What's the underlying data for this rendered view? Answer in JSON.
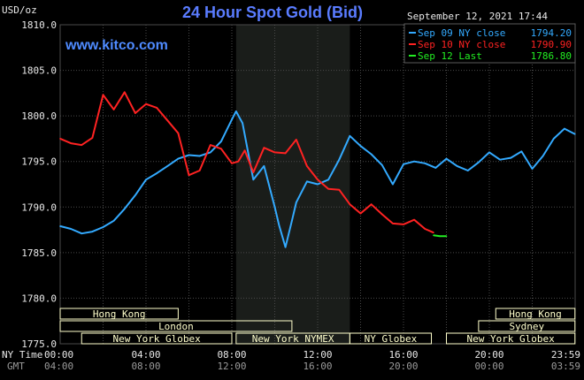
{
  "header": {
    "unit": "USD/oz",
    "title": "24 Hour Spot Gold (Bid)",
    "date": "September 12, 2021 17:44",
    "watermark": "www.kitco.com"
  },
  "colors": {
    "background": "#000000",
    "plot_background": "#000000",
    "grid": "#4a4a4a",
    "title": "#5a7cff",
    "watermark": "#4f8bff",
    "sep09": "#33aaff",
    "sep10": "#ff2222",
    "sep12": "#22ee22",
    "axis_text": "#e8e8e8",
    "market_box": "#ffffcc",
    "market_text": "#000000",
    "closed_band": "#1a1d1a"
  },
  "chart_data": {
    "type": "line",
    "title": "24 Hour Spot Gold (Bid)",
    "ylabel": "USD/oz",
    "ylim": [
      1775,
      1810
    ],
    "y_ticks": [
      "1810.0",
      "1805.0",
      "1800.0",
      "1795.0",
      "1790.0",
      "1785.0",
      "1780.0",
      "1775.0"
    ],
    "x_range_hours": [
      0,
      24
    ],
    "x_ticks_ny": [
      "00:00",
      "04:00",
      "08:00",
      "12:00",
      "16:00",
      "20:00",
      "23:59"
    ],
    "x_ticks_gmt": [
      "04:00",
      "08:00",
      "12:00",
      "16:00",
      "20:00",
      "00:00",
      "03:59"
    ],
    "x_row_labels": [
      "NY Time",
      "GMT"
    ],
    "grid": true,
    "legend": "top-right",
    "legend_entries": [
      {
        "label": "Sep 09 NY close",
        "value": "1794.20"
      },
      {
        "label": "Sep 10 NY close",
        "value": "1790.90"
      },
      {
        "label": "Sep 12 Last",
        "value": "1786.80"
      }
    ],
    "series": [
      {
        "name": "Sep 09 NY close 1794.20",
        "color": "#33aaff",
        "x": [
          0,
          0.5,
          1,
          1.5,
          2,
          2.5,
          3,
          3.5,
          4,
          4.5,
          5,
          5.5,
          6,
          6.5,
          7,
          7.5,
          8,
          8.2,
          8.5,
          9,
          9.5,
          10,
          10.2,
          10.5,
          10.8,
          11,
          11.5,
          12,
          12.5,
          13,
          13.5,
          14,
          14.5,
          15,
          15.5,
          16,
          16.5,
          17,
          17.5,
          18,
          18.5,
          19,
          19.5,
          20,
          20.5,
          21,
          21.5,
          22,
          22.5,
          23,
          23.5,
          23.99
        ],
        "values": [
          1787.9,
          1787.6,
          1787.1,
          1787.3,
          1787.8,
          1788.5,
          1789.8,
          1791.3,
          1793.0,
          1793.7,
          1794.5,
          1795.3,
          1795.7,
          1795.6,
          1796.0,
          1797.2,
          1799.6,
          1800.5,
          1799.2,
          1793.0,
          1794.5,
          1790.0,
          1788.0,
          1785.6,
          1788.5,
          1790.5,
          1792.8,
          1792.5,
          1793.0,
          1795.2,
          1797.8,
          1796.7,
          1795.8,
          1794.6,
          1792.5,
          1794.7,
          1795.0,
          1794.8,
          1794.3,
          1795.3,
          1794.5,
          1794.0,
          1794.9,
          1796.0,
          1795.2,
          1795.4,
          1796.1,
          1794.2,
          1795.6,
          1797.5,
          1798.6,
          1798.0
        ]
      },
      {
        "name": "Sep 10 NY close 1790.90",
        "color": "#ff2222",
        "x": [
          0,
          0.5,
          1,
          1.5,
          2,
          2.5,
          3,
          3.5,
          4,
          4.5,
          5,
          5.5,
          6,
          6.5,
          7,
          7.5,
          8,
          8.3,
          8.6,
          9,
          9.5,
          10,
          10.5,
          11,
          11.5,
          12,
          12.5,
          13,
          13.5,
          14,
          14.5,
          15,
          15.5,
          16,
          16.5,
          17,
          17.4
        ],
        "values": [
          1797.5,
          1797.0,
          1796.8,
          1797.6,
          1802.3,
          1800.7,
          1802.6,
          1800.3,
          1801.3,
          1800.9,
          1799.5,
          1798.1,
          1793.5,
          1794.0,
          1796.8,
          1796.4,
          1794.8,
          1795.0,
          1796.2,
          1793.8,
          1796.5,
          1796.0,
          1795.9,
          1797.4,
          1794.5,
          1793.0,
          1792.0,
          1791.9,
          1790.3,
          1789.3,
          1790.3,
          1789.2,
          1788.2,
          1788.1,
          1788.6,
          1787.6,
          1787.2
        ]
      },
      {
        "name": "Sep 12 Last 1786.80",
        "color": "#22ee22",
        "x": [
          17.4,
          17.7,
          18.0
        ],
        "values": [
          1786.9,
          1786.8,
          1786.8
        ]
      }
    ],
    "closed_band_hours": [
      8.2,
      13.5
    ],
    "market_rows": [
      {
        "row": 0,
        "bars": [
          {
            "label": "Hong Kong",
            "start": 0,
            "end": 5.5
          },
          {
            "label": "Hong Kong",
            "start": 20.3,
            "end": 23.99
          }
        ]
      },
      {
        "row": 1,
        "bars": [
          {
            "label": "London",
            "start": 0,
            "end": 10.8
          },
          {
            "label": "Sydney",
            "start": 19.5,
            "end": 23.99
          }
        ]
      },
      {
        "row": 2,
        "bars": [
          {
            "label": "New York Globex",
            "start": 1.0,
            "end": 8.0
          },
          {
            "label": "New York NYMEX",
            "start": 8.2,
            "end": 13.5
          },
          {
            "label": "NY Globex",
            "start": 13.5,
            "end": 17.3
          },
          {
            "label": "New York Globex",
            "start": 18.0,
            "end": 23.99
          }
        ]
      }
    ]
  }
}
